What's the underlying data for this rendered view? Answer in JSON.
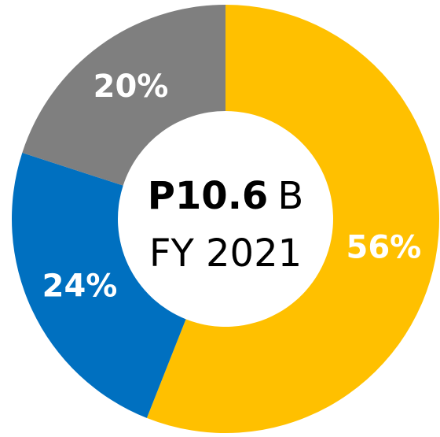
{
  "chart_data": {
    "type": "donut",
    "values": [
      56,
      24,
      20
    ],
    "value_labels": [
      "56%",
      "24%",
      "20%"
    ],
    "colors": [
      "#ffc000",
      "#0070c0",
      "#7f7f7f"
    ],
    "center_value": "P10.6",
    "center_unit": "B",
    "center_subtitle": "FY 2021"
  }
}
